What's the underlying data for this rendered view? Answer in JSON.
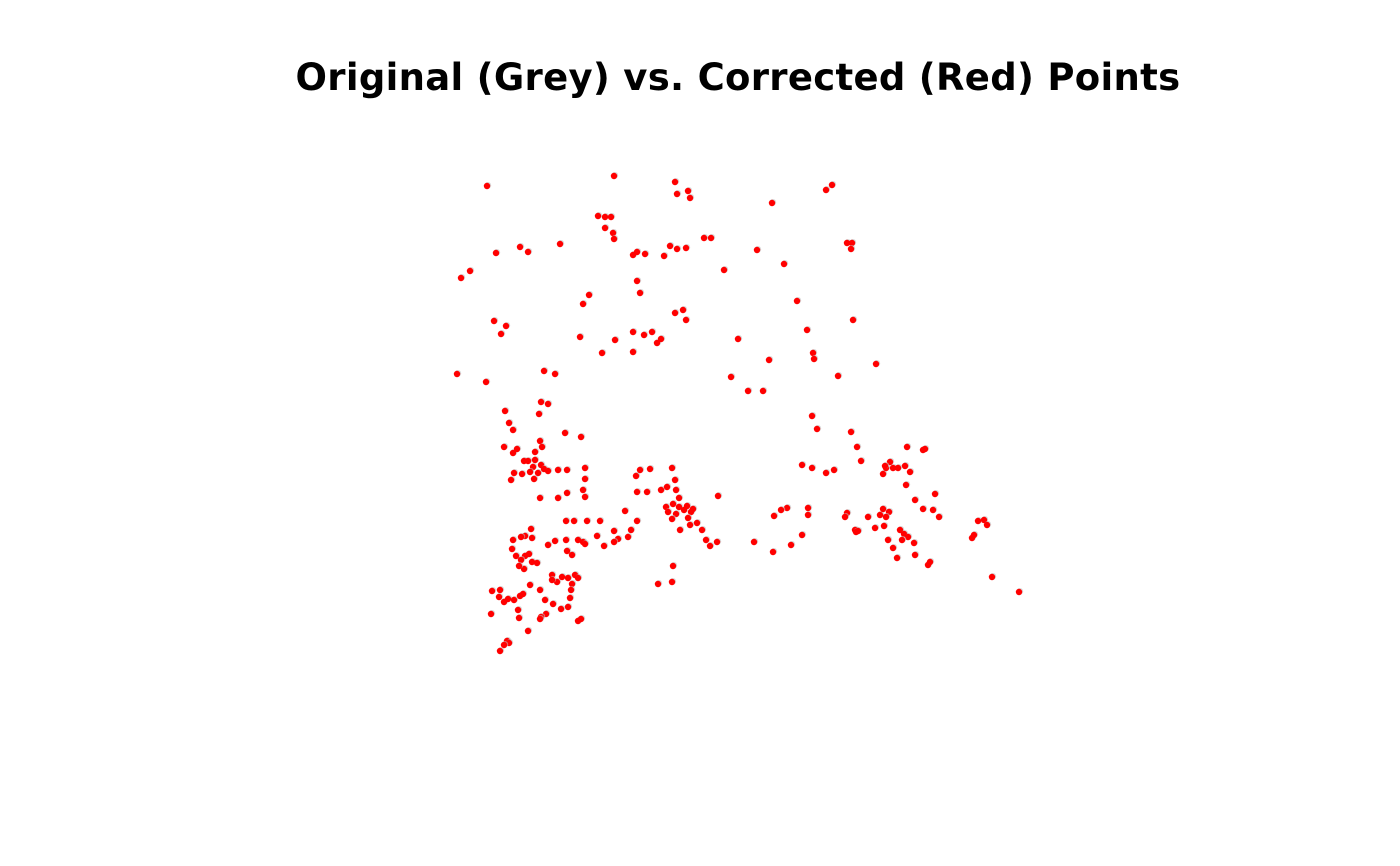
{
  "chart_data": {
    "type": "scatter",
    "title": "Original (Grey) vs. Corrected (Red) Points",
    "xlabel": "",
    "ylabel": "",
    "axes_visible": false,
    "grid": false,
    "legend": "none",
    "colors": {
      "original": "#bebebe",
      "corrected": "#ff0000"
    },
    "series": [
      {
        "color": "#ff0000",
        "points": [
          [
            487,
            186
          ],
          [
            614,
            176
          ],
          [
            675,
            182
          ],
          [
            677,
            194
          ],
          [
            688,
            191
          ],
          [
            690,
            198
          ],
          [
            772,
            203
          ],
          [
            826,
            190
          ],
          [
            832,
            185
          ],
          [
            598,
            216
          ],
          [
            605,
            217
          ],
          [
            611,
            217
          ],
          [
            605,
            228
          ],
          [
            613,
            233
          ],
          [
            614,
            239
          ],
          [
            704,
            238
          ],
          [
            711,
            238
          ],
          [
            847,
            243
          ],
          [
            852,
            243
          ],
          [
            851,
            249
          ],
          [
            496,
            253
          ],
          [
            520,
            247
          ],
          [
            528,
            252
          ],
          [
            560,
            244
          ],
          [
            633,
            255
          ],
          [
            637,
            252
          ],
          [
            645,
            254
          ],
          [
            664,
            256
          ],
          [
            670,
            246
          ],
          [
            677,
            249
          ],
          [
            686,
            248
          ],
          [
            757,
            250
          ],
          [
            461,
            278
          ],
          [
            470,
            271
          ],
          [
            637,
            281
          ],
          [
            640,
            293
          ],
          [
            724,
            270
          ],
          [
            784,
            264
          ],
          [
            583,
            304
          ],
          [
            589,
            295
          ],
          [
            797,
            301
          ],
          [
            675,
            313
          ],
          [
            683,
            310
          ],
          [
            686,
            320
          ],
          [
            494,
            321
          ],
          [
            506,
            326
          ],
          [
            501,
            334
          ],
          [
            853,
            320
          ],
          [
            580,
            337
          ],
          [
            602,
            353
          ],
          [
            615,
            340
          ],
          [
            633,
            332
          ],
          [
            644,
            335
          ],
          [
            652,
            332
          ],
          [
            633,
            352
          ],
          [
            657,
            343
          ],
          [
            661,
            339
          ],
          [
            738,
            339
          ],
          [
            807,
            330
          ],
          [
            813,
            353
          ],
          [
            814,
            359
          ],
          [
            769,
            360
          ],
          [
            876,
            364
          ],
          [
            457,
            374
          ],
          [
            486,
            382
          ],
          [
            544,
            371
          ],
          [
            555,
            374
          ],
          [
            731,
            377
          ],
          [
            748,
            391
          ],
          [
            763,
            391
          ],
          [
            838,
            376
          ],
          [
            541,
            402
          ],
          [
            548,
            404
          ],
          [
            539,
            414
          ],
          [
            505,
            411
          ],
          [
            509,
            423
          ],
          [
            513,
            430
          ],
          [
            812,
            416
          ],
          [
            817,
            429
          ],
          [
            851,
            432
          ],
          [
            504,
            447
          ],
          [
            513,
            453
          ],
          [
            517,
            449
          ],
          [
            535,
            452
          ],
          [
            540,
            441
          ],
          [
            542,
            447
          ],
          [
            524,
            461
          ],
          [
            528,
            461
          ],
          [
            535,
            460
          ],
          [
            533,
            467
          ],
          [
            541,
            465
          ],
          [
            538,
            473
          ],
          [
            544,
            469
          ],
          [
            548,
            471
          ],
          [
            565,
            433
          ],
          [
            581,
            437
          ],
          [
            857,
            447
          ],
          [
            861,
            461
          ],
          [
            907,
            447
          ],
          [
            923,
            450
          ],
          [
            925,
            449
          ],
          [
            514,
            473
          ],
          [
            522,
            474
          ],
          [
            530,
            472
          ],
          [
            511,
            480
          ],
          [
            534,
            479
          ],
          [
            558,
            470
          ],
          [
            567,
            470
          ],
          [
            585,
            468
          ],
          [
            585,
            479
          ],
          [
            583,
            490
          ],
          [
            585,
            497
          ],
          [
            567,
            493
          ],
          [
            558,
            498
          ],
          [
            540,
            498
          ],
          [
            636,
            476
          ],
          [
            640,
            470
          ],
          [
            650,
            469
          ],
          [
            637,
            492
          ],
          [
            672,
            468
          ],
          [
            675,
            480
          ],
          [
            647,
            492
          ],
          [
            661,
            490
          ],
          [
            667,
            487
          ],
          [
            676,
            490
          ],
          [
            679,
            498
          ],
          [
            802,
            465
          ],
          [
            812,
            468
          ],
          [
            826,
            473
          ],
          [
            834,
            470
          ],
          [
            883,
            474
          ],
          [
            886,
            468
          ],
          [
            890,
            462
          ],
          [
            893,
            468
          ],
          [
            898,
            468
          ],
          [
            905,
            466
          ],
          [
            910,
            472
          ],
          [
            885,
            466
          ],
          [
            906,
            485
          ],
          [
            915,
            500
          ],
          [
            923,
            509
          ],
          [
            935,
            494
          ],
          [
            933,
            510
          ],
          [
            939,
            517
          ],
          [
            718,
            496
          ],
          [
            666,
            507
          ],
          [
            668,
            512
          ],
          [
            673,
            504
          ],
          [
            679,
            507
          ],
          [
            676,
            514
          ],
          [
            684,
            510
          ],
          [
            687,
            506
          ],
          [
            691,
            512
          ],
          [
            693,
            509
          ],
          [
            688,
            518
          ],
          [
            690,
            525
          ],
          [
            672,
            519
          ],
          [
            680,
            530
          ],
          [
            697,
            523
          ],
          [
            702,
            530
          ],
          [
            706,
            540
          ],
          [
            710,
            546
          ],
          [
            717,
            542
          ],
          [
            625,
            511
          ],
          [
            637,
            521
          ],
          [
            566,
            521
          ],
          [
            574,
            521
          ],
          [
            587,
            521
          ],
          [
            600,
            521
          ],
          [
            614,
            531
          ],
          [
            618,
            539
          ],
          [
            628,
            537
          ],
          [
            631,
            530
          ],
          [
            787,
            508
          ],
          [
            781,
            510
          ],
          [
            774,
            516
          ],
          [
            808,
            508
          ],
          [
            808,
            515
          ],
          [
            847,
            513
          ],
          [
            845,
            517
          ],
          [
            868,
            517
          ],
          [
            880,
            515
          ],
          [
            883,
            509
          ],
          [
            889,
            512
          ],
          [
            886,
            517
          ],
          [
            855,
            530
          ],
          [
            856,
            532
          ],
          [
            858,
            531
          ],
          [
            875,
            528
          ],
          [
            884,
            526
          ],
          [
            900,
            530
          ],
          [
            904,
            534
          ],
          [
            908,
            537
          ],
          [
            902,
            540
          ],
          [
            888,
            540
          ],
          [
            893,
            548
          ],
          [
            897,
            558
          ],
          [
            914,
            543
          ],
          [
            915,
            555
          ],
          [
            928,
            565
          ],
          [
            930,
            562
          ],
          [
            978,
            521
          ],
          [
            984,
            520
          ],
          [
            987,
            525
          ],
          [
            972,
            538
          ],
          [
            974,
            535
          ],
          [
            531,
            529
          ],
          [
            532,
            538
          ],
          [
            525,
            536
          ],
          [
            521,
            537
          ],
          [
            513,
            540
          ],
          [
            512,
            549
          ],
          [
            516,
            556
          ],
          [
            525,
            556
          ],
          [
            529,
            554
          ],
          [
            521,
            560
          ],
          [
            524,
            569
          ],
          [
            519,
            566
          ],
          [
            532,
            562
          ],
          [
            537,
            563
          ],
          [
            548,
            545
          ],
          [
            555,
            541
          ],
          [
            566,
            540
          ],
          [
            567,
            551
          ],
          [
            572,
            555
          ],
          [
            578,
            540
          ],
          [
            583,
            542
          ],
          [
            585,
            544
          ],
          [
            597,
            536
          ],
          [
            604,
            546
          ],
          [
            614,
            542
          ],
          [
            754,
            542
          ],
          [
            773,
            552
          ],
          [
            791,
            545
          ],
          [
            802,
            535
          ],
          [
            673,
            566
          ],
          [
            672,
            582
          ],
          [
            658,
            584
          ],
          [
            992,
            577
          ],
          [
            1019,
            592
          ],
          [
            552,
            575
          ],
          [
            557,
            582
          ],
          [
            552,
            580
          ],
          [
            562,
            577
          ],
          [
            568,
            578
          ],
          [
            575,
            575
          ],
          [
            578,
            578
          ],
          [
            572,
            584
          ],
          [
            571,
            590
          ],
          [
            570,
            598
          ],
          [
            568,
            607
          ],
          [
            540,
            590
          ],
          [
            545,
            600
          ],
          [
            553,
            604
          ],
          [
            561,
            609
          ],
          [
            546,
            614
          ],
          [
            541,
            617
          ],
          [
            492,
            591
          ],
          [
            500,
            590
          ],
          [
            499,
            597
          ],
          [
            504,
            602
          ],
          [
            508,
            599
          ],
          [
            514,
            600
          ],
          [
            520,
            596
          ],
          [
            523,
            594
          ],
          [
            530,
            585
          ],
          [
            518,
            610
          ],
          [
            519,
            618
          ],
          [
            491,
            614
          ],
          [
            528,
            631
          ],
          [
            540,
            619
          ],
          [
            578,
            621
          ],
          [
            581,
            619
          ],
          [
            507,
            641
          ],
          [
            509,
            643
          ],
          [
            504,
            645
          ],
          [
            500,
            651
          ]
        ]
      }
    ]
  }
}
